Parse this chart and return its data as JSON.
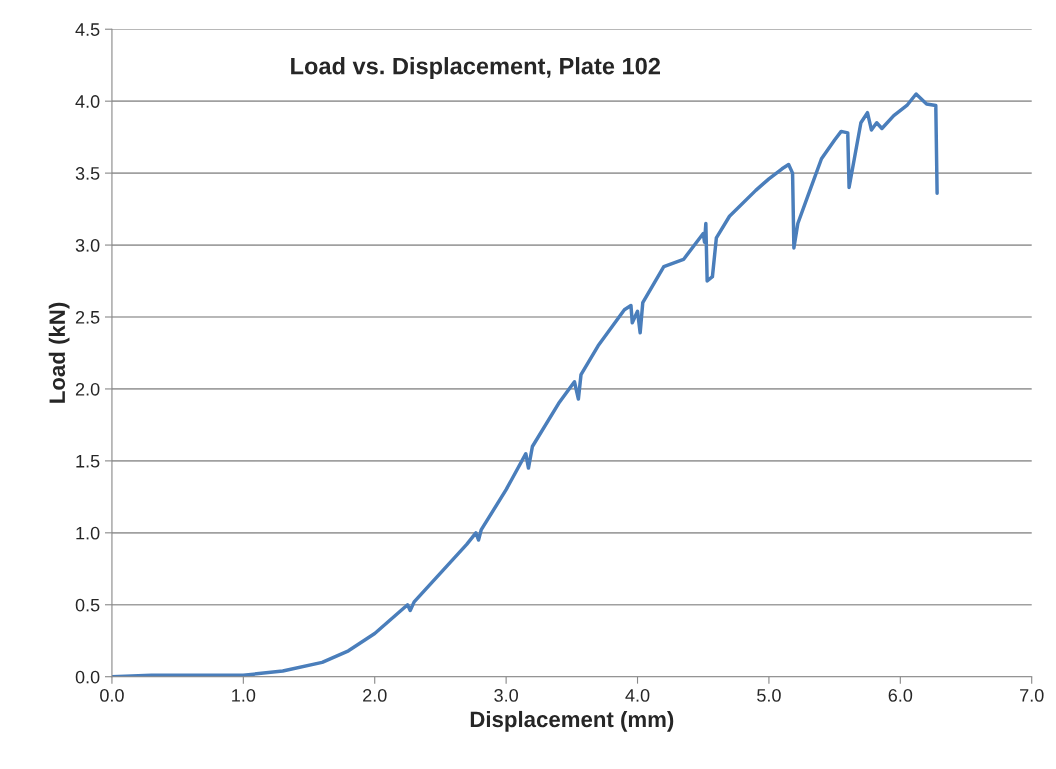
{
  "chart_data": {
    "type": "line",
    "title": "Load vs. Displacement, Plate 102",
    "xlabel": "Displacement (mm)",
    "ylabel": "Load (kN)",
    "series": [
      {
        "color": "#4a7ebb",
        "x": [
          0,
          0.3,
          1.0,
          1.3,
          1.6,
          1.8,
          2.0,
          2.25,
          2.27,
          2.3,
          2.5,
          2.7,
          2.77,
          2.79,
          2.81,
          3.0,
          3.15,
          3.17,
          3.2,
          3.4,
          3.52,
          3.55,
          3.57,
          3.7,
          3.9,
          3.95,
          3.96,
          4.0,
          4.02,
          4.04,
          4.2,
          4.35,
          4.5,
          4.51,
          4.52,
          4.53,
          4.57,
          4.6,
          4.7,
          4.9,
          5.0,
          5.1,
          5.15,
          5.18,
          5.19,
          5.22,
          5.3,
          5.4,
          5.5,
          5.55,
          5.6,
          5.61,
          5.65,
          5.7,
          5.75,
          5.78,
          5.82,
          5.86,
          5.95,
          6.05,
          6.12,
          6.2,
          6.27,
          6.28
        ],
        "values": [
          0,
          0.01,
          0.01,
          0.04,
          0.1,
          0.18,
          0.3,
          0.5,
          0.46,
          0.52,
          0.72,
          0.92,
          1.0,
          0.95,
          1.02,
          1.3,
          1.55,
          1.45,
          1.6,
          1.9,
          2.05,
          1.93,
          2.1,
          2.3,
          2.55,
          2.58,
          2.46,
          2.54,
          2.39,
          2.6,
          2.85,
          2.9,
          3.08,
          3.02,
          3.15,
          2.75,
          2.78,
          3.05,
          3.2,
          3.38,
          3.46,
          3.53,
          3.56,
          3.5,
          2.98,
          3.15,
          3.35,
          3.6,
          3.73,
          3.79,
          3.78,
          3.4,
          3.6,
          3.85,
          3.92,
          3.8,
          3.85,
          3.81,
          3.9,
          3.97,
          4.05,
          3.98,
          3.97,
          3.36
        ]
      }
    ],
    "xlim": [
      0,
      7
    ],
    "ylim": [
      0,
      4.5
    ],
    "xticks": [
      {
        "value": 0,
        "label": "0.0"
      },
      {
        "value": 1,
        "label": "1.0"
      },
      {
        "value": 2,
        "label": "2.0"
      },
      {
        "value": 3,
        "label": "3.0"
      },
      {
        "value": 4,
        "label": "4.0"
      },
      {
        "value": 5,
        "label": "5.0"
      },
      {
        "value": 6,
        "label": "6.0"
      },
      {
        "value": 7,
        "label": "7.0"
      }
    ],
    "yticks": [
      {
        "value": 0,
        "label": "0.0"
      },
      {
        "value": 0.5,
        "label": "0.5"
      },
      {
        "value": 1,
        "label": "1.0"
      },
      {
        "value": 1.5,
        "label": "1.5"
      },
      {
        "value": 2,
        "label": "2.0"
      },
      {
        "value": 2.5,
        "label": "2.5"
      },
      {
        "value": 3,
        "label": "3.0"
      },
      {
        "value": 3.5,
        "label": "3.5"
      },
      {
        "value": 4,
        "label": "4.0"
      },
      {
        "value": 4.5,
        "label": "4.5"
      }
    ],
    "grid": "y",
    "legend": false
  }
}
